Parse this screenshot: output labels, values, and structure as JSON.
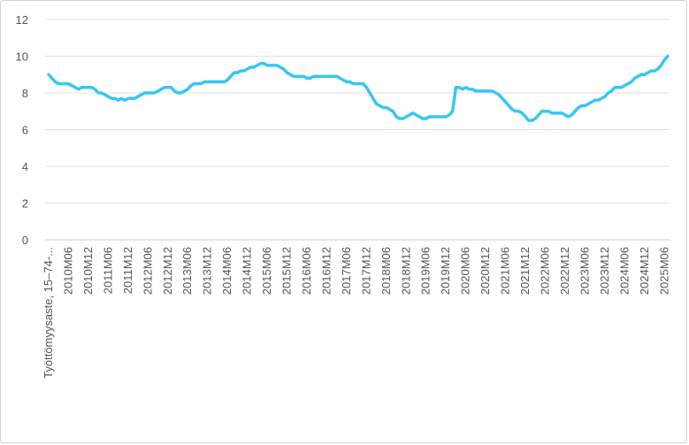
{
  "chart_data": {
    "type": "line",
    "color": "#38c6f4",
    "grid": true,
    "ylim": [
      0,
      12
    ],
    "yticks": [
      0,
      2,
      4,
      6,
      8,
      10,
      12
    ],
    "categories": [
      "Työttömyysaste, 15–74-...",
      null,
      null,
      null,
      null,
      null,
      "2010M06",
      null,
      null,
      null,
      null,
      null,
      "2010M12",
      null,
      null,
      null,
      null,
      null,
      "2011M06",
      null,
      null,
      null,
      null,
      null,
      "2011M12",
      null,
      null,
      null,
      null,
      null,
      "2012M06",
      null,
      null,
      null,
      null,
      null,
      "2012M12",
      null,
      null,
      null,
      null,
      null,
      "2013M06",
      null,
      null,
      null,
      null,
      null,
      "2013M12",
      null,
      null,
      null,
      null,
      null,
      "2014M06",
      null,
      null,
      null,
      null,
      null,
      "2014M12",
      null,
      null,
      null,
      null,
      null,
      "2015M06",
      null,
      null,
      null,
      null,
      null,
      "2015M12",
      null,
      null,
      null,
      null,
      null,
      "2016M06",
      null,
      null,
      null,
      null,
      null,
      "2016M12",
      null,
      null,
      null,
      null,
      null,
      "2017M06",
      null,
      null,
      null,
      null,
      null,
      "2017M12",
      null,
      null,
      null,
      null,
      null,
      "2018M06",
      null,
      null,
      null,
      null,
      null,
      "2018M12",
      null,
      null,
      null,
      null,
      null,
      "2019M06",
      null,
      null,
      null,
      null,
      null,
      "2019M12",
      null,
      null,
      null,
      null,
      null,
      "2020M06",
      null,
      null,
      null,
      null,
      null,
      "2020M12",
      null,
      null,
      null,
      null,
      null,
      "2021M06",
      null,
      null,
      null,
      null,
      null,
      "2021M12",
      null,
      null,
      null,
      null,
      null,
      "2022M06",
      null,
      null,
      null,
      null,
      null,
      "2022M12",
      null,
      null,
      null,
      null,
      null,
      "2023M06",
      null,
      null,
      null,
      null,
      null,
      "2023M12",
      null,
      null,
      null,
      null,
      null,
      "2024M06",
      null,
      null,
      null,
      null,
      null,
      "2024M12",
      null,
      null,
      null,
      null,
      null,
      "2025M06",
      null
    ],
    "values": [
      9.0,
      8.8,
      8.6,
      8.5,
      8.5,
      8.5,
      8.5,
      8.4,
      8.3,
      8.2,
      8.3,
      8.3,
      8.3,
      8.3,
      8.2,
      8.0,
      8.0,
      7.9,
      7.8,
      7.7,
      7.7,
      7.6,
      7.7,
      7.6,
      7.7,
      7.7,
      7.7,
      7.8,
      7.9,
      8.0,
      8.0,
      8.0,
      8.0,
      8.1,
      8.2,
      8.3,
      8.3,
      8.3,
      8.1,
      8.0,
      8.0,
      8.1,
      8.2,
      8.4,
      8.5,
      8.5,
      8.5,
      8.6,
      8.6,
      8.6,
      8.6,
      8.6,
      8.6,
      8.6,
      8.7,
      8.9,
      9.1,
      9.1,
      9.2,
      9.2,
      9.3,
      9.4,
      9.4,
      9.5,
      9.6,
      9.6,
      9.5,
      9.5,
      9.5,
      9.5,
      9.4,
      9.3,
      9.1,
      9.0,
      8.9,
      8.9,
      8.9,
      8.9,
      8.8,
      8.8,
      8.9,
      8.9,
      8.9,
      8.9,
      8.9,
      8.9,
      8.9,
      8.9,
      8.8,
      8.7,
      8.6,
      8.6,
      8.5,
      8.5,
      8.5,
      8.5,
      8.3,
      8.0,
      7.7,
      7.4,
      7.3,
      7.2,
      7.2,
      7.1,
      7.0,
      6.7,
      6.6,
      6.6,
      6.7,
      6.8,
      6.9,
      6.8,
      6.7,
      6.6,
      6.6,
      6.7,
      6.7,
      6.7,
      6.7,
      6.7,
      6.7,
      6.8,
      7.0,
      8.3,
      8.3,
      8.2,
      8.3,
      8.2,
      8.2,
      8.1,
      8.1,
      8.1,
      8.1,
      8.1,
      8.1,
      8.0,
      7.9,
      7.7,
      7.5,
      7.3,
      7.1,
      7.0,
      7.0,
      6.9,
      6.7,
      6.5,
      6.5,
      6.6,
      6.8,
      7.0,
      7.0,
      7.0,
      6.9,
      6.9,
      6.9,
      6.9,
      6.8,
      6.7,
      6.8,
      7.0,
      7.2,
      7.3,
      7.3,
      7.4,
      7.5,
      7.6,
      7.6,
      7.7,
      7.8,
      8.0,
      8.1,
      8.3,
      8.3,
      8.3,
      8.4,
      8.5,
      8.6,
      8.8,
      8.9,
      9.0,
      9.0,
      9.1,
      9.2,
      9.2,
      9.3,
      9.5,
      9.8,
      10.0
    ]
  }
}
